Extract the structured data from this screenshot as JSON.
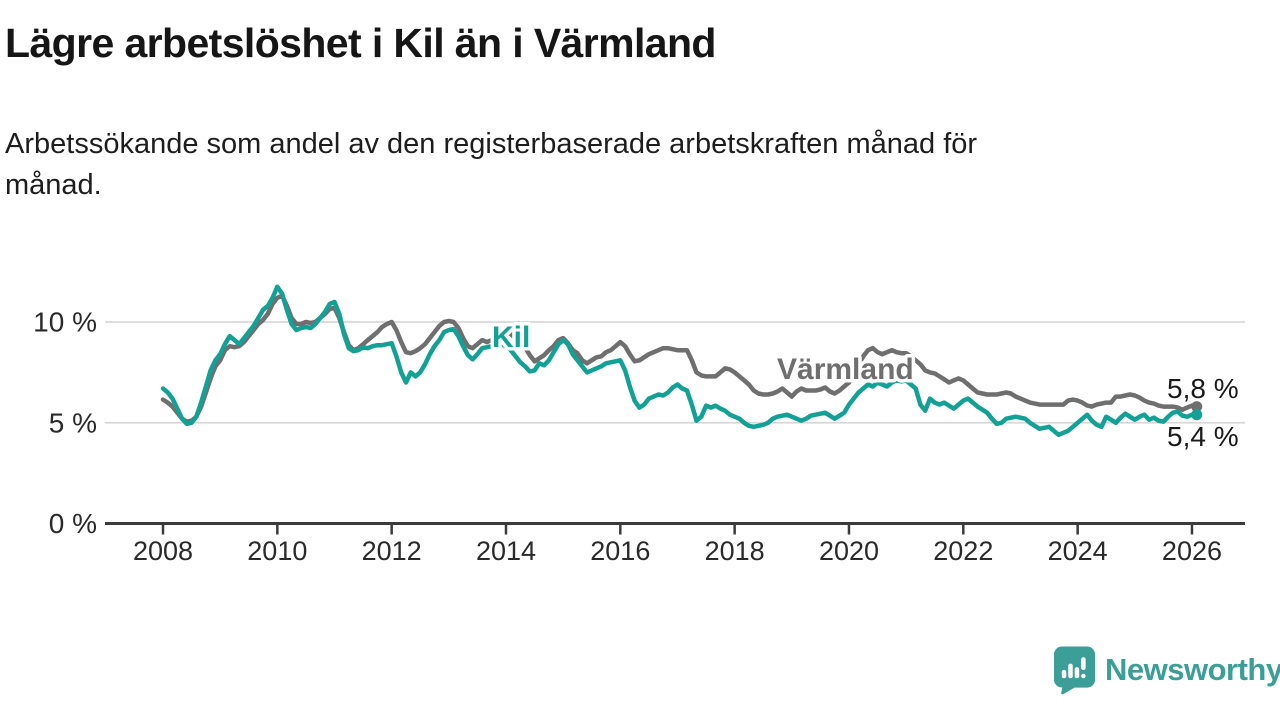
{
  "header": {
    "title": "Lägre arbetslöshet i Kil än i Värmland",
    "subtitle_line1": "Arbetssökande som andel av den registerbaserade arbetskraften månad för",
    "subtitle_line2": "månad."
  },
  "chart_data": {
    "type": "line",
    "title": "Lägre arbetslöshet i Kil än i Värmland",
    "subtitle": "Arbetssökande som andel av den registerbaserade arbetskraften månad för månad.",
    "unit": "percent of registered labour force",
    "x_start_year": 2008,
    "x_start_month": 1,
    "points_per_year": 12,
    "x_ticks": [
      "2008",
      "2010",
      "2012",
      "2014",
      "2016",
      "2018",
      "2020",
      "2022",
      "2024",
      "2026"
    ],
    "y_ticks": [
      {
        "value": 0,
        "label": "0 %"
      },
      {
        "value": 5,
        "label": "5 %"
      },
      {
        "value": 10,
        "label": "10 %"
      }
    ],
    "ylim": [
      0,
      12.6
    ],
    "grid": "horizontal",
    "gridline_color": "#d8d8d8",
    "axis_color": "#3b3b3b",
    "tick_text_color": "#2a2a2a",
    "series": [
      {
        "name": "Värmland",
        "color": "#6f6f6f",
        "end_label": "5,8 %",
        "values": [
          6.15,
          6.0,
          5.8,
          5.5,
          5.2,
          5.05,
          5.1,
          5.3,
          5.8,
          6.5,
          7.2,
          7.8,
          8.1,
          8.6,
          8.8,
          8.75,
          8.8,
          9.0,
          9.3,
          9.6,
          9.9,
          10.1,
          10.4,
          10.9,
          11.2,
          11.3,
          10.8,
          10.2,
          9.9,
          9.9,
          10.0,
          9.95,
          10.0,
          10.2,
          10.4,
          10.65,
          10.7,
          10.2,
          9.5,
          8.85,
          8.6,
          8.7,
          8.9,
          9.1,
          9.3,
          9.5,
          9.75,
          9.9,
          10.0,
          9.6,
          9.0,
          8.5,
          8.45,
          8.55,
          8.7,
          8.9,
          9.2,
          9.5,
          9.8,
          10.0,
          10.05,
          10.0,
          9.7,
          9.2,
          8.8,
          8.7,
          8.9,
          9.1,
          9.0,
          9.1,
          9.25,
          9.4,
          9.5,
          9.4,
          9.2,
          9.0,
          8.75,
          8.35,
          8.05,
          8.2,
          8.35,
          8.6,
          8.8,
          9.1,
          9.2,
          8.95,
          8.6,
          8.45,
          8.1,
          7.95,
          8.1,
          8.25,
          8.3,
          8.5,
          8.6,
          8.8,
          9.0,
          8.8,
          8.4,
          8.05,
          8.1,
          8.25,
          8.4,
          8.5,
          8.6,
          8.7,
          8.7,
          8.65,
          8.6,
          8.6,
          8.6,
          8.1,
          7.5,
          7.35,
          7.3,
          7.3,
          7.3,
          7.5,
          7.7,
          7.65,
          7.5,
          7.3,
          7.1,
          6.9,
          6.6,
          6.45,
          6.4,
          6.4,
          6.45,
          6.55,
          6.7,
          6.5,
          6.3,
          6.55,
          6.7,
          6.6,
          6.6,
          6.6,
          6.65,
          6.75,
          6.55,
          6.45,
          6.6,
          6.8,
          7.0,
          7.4,
          7.9,
          8.3,
          8.6,
          8.7,
          8.5,
          8.4,
          8.5,
          8.6,
          8.5,
          8.45,
          8.45,
          8.3,
          8.1,
          7.9,
          7.6,
          7.5,
          7.45,
          7.3,
          7.15,
          7.0,
          7.1,
          7.2,
          7.1,
          6.9,
          6.7,
          6.5,
          6.45,
          6.4,
          6.4,
          6.4,
          6.45,
          6.5,
          6.45,
          6.3,
          6.2,
          6.1,
          6.0,
          5.95,
          5.9,
          5.9,
          5.9,
          5.9,
          5.9,
          5.9,
          6.1,
          6.15,
          6.1,
          6.0,
          5.85,
          5.8,
          5.9,
          5.95,
          6.0,
          6.0,
          6.3,
          6.3,
          6.35,
          6.4,
          6.35,
          6.25,
          6.1,
          6.0,
          5.95,
          5.85,
          5.8,
          5.8,
          5.8,
          5.75,
          5.65,
          5.75,
          5.85,
          5.8
        ]
      },
      {
        "name": "Kil",
        "color": "#14a195",
        "end_label": "5,4 %",
        "values": [
          6.7,
          6.5,
          6.2,
          5.7,
          5.2,
          4.95,
          5.0,
          5.3,
          6.0,
          6.8,
          7.6,
          8.1,
          8.4,
          8.9,
          9.3,
          9.1,
          8.9,
          9.2,
          9.5,
          9.8,
          10.2,
          10.6,
          10.8,
          11.2,
          11.75,
          11.4,
          10.6,
          9.9,
          9.6,
          9.7,
          9.75,
          9.7,
          9.9,
          10.2,
          10.5,
          10.9,
          11.0,
          10.4,
          9.4,
          8.7,
          8.55,
          8.6,
          8.75,
          8.7,
          8.8,
          8.85,
          8.85,
          8.9,
          8.95,
          8.3,
          7.5,
          7.0,
          7.5,
          7.3,
          7.5,
          7.9,
          8.4,
          8.8,
          9.1,
          9.5,
          9.6,
          9.65,
          9.3,
          8.8,
          8.35,
          8.15,
          8.4,
          8.7,
          8.75,
          8.8,
          8.85,
          8.9,
          8.8,
          8.6,
          8.3,
          8.0,
          7.8,
          7.55,
          7.6,
          7.95,
          7.85,
          8.1,
          8.5,
          8.9,
          9.1,
          8.9,
          8.4,
          8.1,
          7.8,
          7.5,
          7.6,
          7.7,
          7.8,
          7.95,
          8.0,
          8.05,
          8.1,
          7.6,
          6.8,
          6.1,
          5.75,
          5.9,
          6.2,
          6.3,
          6.4,
          6.35,
          6.5,
          6.75,
          6.9,
          6.7,
          6.6,
          5.9,
          5.1,
          5.3,
          5.85,
          5.75,
          5.85,
          5.7,
          5.6,
          5.4,
          5.3,
          5.2,
          5.0,
          4.85,
          4.8,
          4.85,
          4.9,
          5.0,
          5.2,
          5.3,
          5.35,
          5.4,
          5.3,
          5.2,
          5.1,
          5.2,
          5.35,
          5.4,
          5.45,
          5.5,
          5.35,
          5.2,
          5.35,
          5.5,
          5.9,
          6.2,
          6.5,
          6.7,
          6.9,
          6.8,
          7.0,
          6.9,
          6.8,
          7.0,
          7.1,
          7.05,
          7.1,
          6.9,
          6.7,
          5.9,
          5.6,
          6.2,
          6.0,
          5.9,
          6.0,
          5.85,
          5.7,
          5.9,
          6.1,
          6.2,
          6.0,
          5.8,
          5.65,
          5.5,
          5.2,
          4.95,
          5.0,
          5.2,
          5.25,
          5.3,
          5.25,
          5.2,
          5.0,
          4.85,
          4.7,
          4.75,
          4.8,
          4.6,
          4.4,
          4.5,
          4.6,
          4.8,
          5.0,
          5.2,
          5.4,
          5.1,
          4.9,
          4.8,
          5.3,
          5.15,
          5.0,
          5.25,
          5.45,
          5.3,
          5.15,
          5.3,
          5.4,
          5.15,
          5.25,
          5.1,
          5.05,
          5.3,
          5.5,
          5.55,
          5.35,
          5.3,
          5.4,
          5.4
        ]
      }
    ],
    "annotations": {
      "series_label_varmland": "Värmland",
      "series_label_kil": "Kil",
      "end_value_varmland": "5,8 %",
      "end_value_kil": "5,4 %"
    }
  },
  "footer": {
    "brand": "Newsworthy",
    "brand_color": "#3b9e97"
  }
}
